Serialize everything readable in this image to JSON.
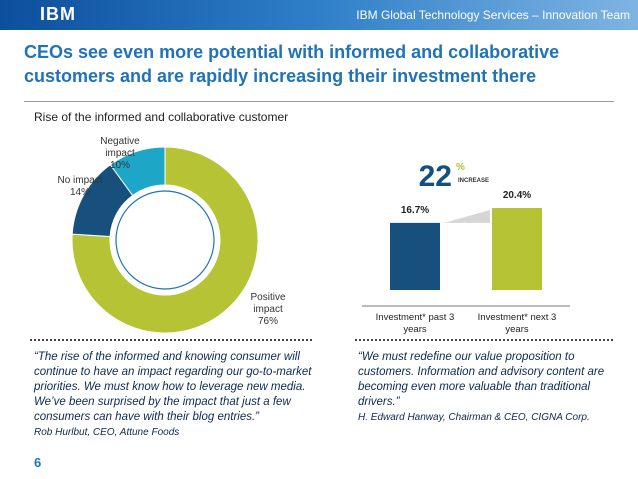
{
  "header": {
    "logo": "IBM",
    "team": "IBM Global Technology Services – Innovation Team"
  },
  "title": "CEOs see even more potential with informed and collaborative customers and are rapidly increasing their investment there",
  "chart_data": [
    {
      "type": "pie",
      "title": "Rise of the informed and collaborative customer",
      "categories": [
        "Positive impact",
        "No impact",
        "Negative impact"
      ],
      "values": [
        76,
        14,
        10
      ],
      "value_labels": [
        "76%",
        "14%",
        "10%"
      ],
      "colors": [
        "#b5c334",
        "#17507d",
        "#1ea6c8"
      ]
    },
    {
      "type": "bar",
      "categories": [
        "Investment* past 3 years",
        "Investment* next 3 years"
      ],
      "values": [
        16.7,
        20.4
      ],
      "value_labels": [
        "16.7%",
        "20.4%"
      ],
      "colors": [
        "#17507d",
        "#b5c334"
      ],
      "annotation": {
        "value": 22,
        "unit": "%",
        "label": "INCREASE"
      }
    }
  ],
  "quotes": [
    {
      "text": "“The rise of the informed and knowing consumer will continue to have an impact regarding our go-to-market priorities. We must know how to leverage new media. We’ve been surprised by the impact that just a few consumers can have with their blog entries.”",
      "source": "Rob Hurlbut, CEO, Attune Foods"
    },
    {
      "text": "“We must redefine our value proposition to customers. Information and advisory content are becoming even more valuable than traditional drivers.”",
      "source": "H. Edward Hanway, Chairman & CEO, CIGNA Corp."
    }
  ],
  "page": "6"
}
